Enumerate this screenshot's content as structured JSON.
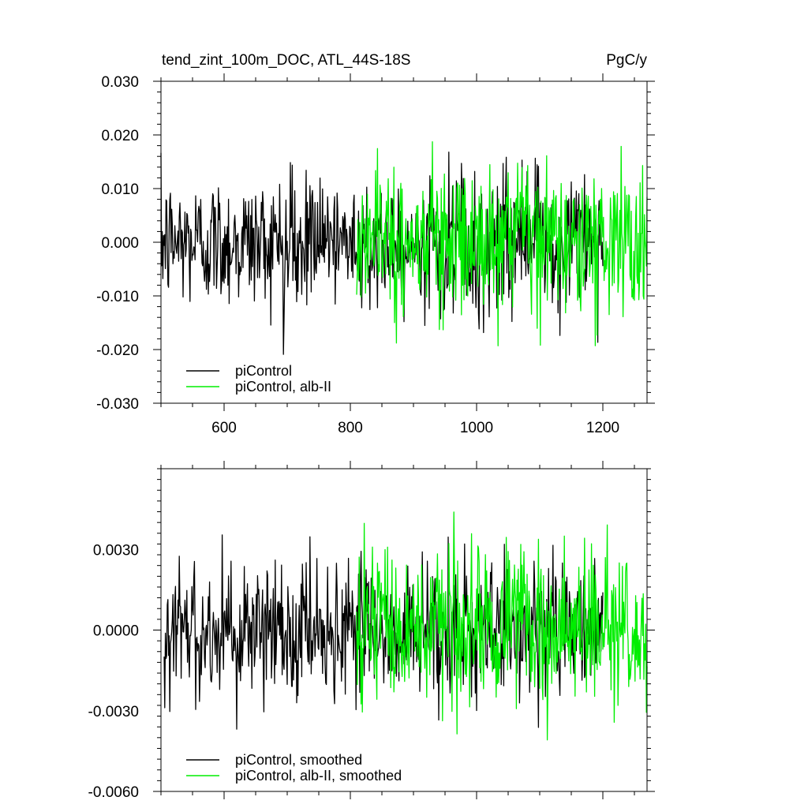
{
  "figure": {
    "title": "tend_zint_100m_DOC, ATL_44S-18S",
    "units": "PgC/y"
  },
  "chart_data": [
    {
      "type": "line",
      "xlim": [
        500,
        1270
      ],
      "ylim": [
        -0.03,
        0.03
      ],
      "x_ticks": [
        600,
        800,
        1000,
        1200
      ],
      "x_tick_labels": [
        "600",
        "800",
        "1000",
        "1200"
      ],
      "y_ticks": [
        -0.03,
        -0.02,
        -0.01,
        0.0,
        0.01,
        0.02,
        0.03
      ],
      "y_tick_labels": [
        "-0.030",
        "-0.020",
        "-0.010",
        "0.000",
        "0.010",
        "0.020",
        "0.030"
      ],
      "legend_position": "bottom-left",
      "series": [
        {
          "name": "piControl",
          "color": "#000000",
          "x_start": 500,
          "x_end": 1200,
          "mean": 0.0,
          "amplitude": 0.006,
          "max": 0.023,
          "min": -0.0225
        },
        {
          "name": "piControl, alb-II",
          "color": "#00ee00",
          "x_start": 810,
          "x_end": 1270,
          "mean": 0.0,
          "amplitude": 0.0065,
          "max": 0.019,
          "min": -0.0208
        }
      ]
    },
    {
      "type": "line",
      "xlim": [
        500,
        1270
      ],
      "ylim": [
        -0.006,
        0.006
      ],
      "x_ticks": [
        600,
        800,
        1000,
        1200
      ],
      "y_ticks": [
        -0.006,
        -0.003,
        0.0,
        0.003
      ],
      "y_tick_labels": [
        "-0.0060",
        "-0.0030",
        "0.0000",
        "0.0030"
      ],
      "legend_position": "bottom-left",
      "series": [
        {
          "name": "piControl, smoothed",
          "color": "#000000",
          "x_start": 505,
          "x_end": 1200,
          "mean": 0.0,
          "amplitude": 0.0013,
          "max": 0.0036,
          "min": -0.0039
        },
        {
          "name": "piControl, alb-II, smoothed",
          "color": "#00ee00",
          "x_start": 810,
          "x_end": 1270,
          "mean": 0.0,
          "amplitude": 0.0014,
          "max": 0.0047,
          "min": -0.0043
        }
      ]
    }
  ]
}
